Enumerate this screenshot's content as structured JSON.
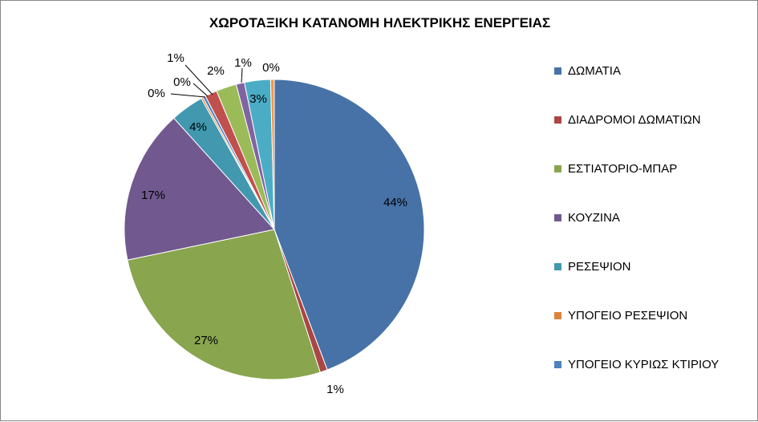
{
  "chart_data": {
    "type": "pie",
    "title": "ΧΩΡΟΤΑΞΙΚΗ ΚΑΤΑΝΟΜΗ ΗΛΕΚΤΡΙΚΗΣ ΕΝΕΡΓΕΙΑΣ",
    "legend_position": "right",
    "slices": [
      {
        "label": "ΔΩΜΑΤΙΑ",
        "value": 44.3,
        "display": "44%",
        "color": "#4672A8",
        "in_legend": true
      },
      {
        "label": "ΔΙΑΔΡΟΜΟΙ ΔΩΜΑΤΙΩΝ",
        "value": 0.8,
        "display": "1%",
        "color": "#AA4643",
        "in_legend": true
      },
      {
        "label": "ΕΣΤΙΑΤΟΡΙΟ-ΜΠΑΡ",
        "value": 26.7,
        "display": "27%",
        "color": "#89A54E",
        "in_legend": true
      },
      {
        "label": "ΚΟΥΖΙΝΑ",
        "value": 16.6,
        "display": "17%",
        "color": "#71588F",
        "in_legend": true
      },
      {
        "label": "ΡΕΣΕΨΙΟΝ",
        "value": 3.6,
        "display": "4%",
        "color": "#4198AF",
        "in_legend": true
      },
      {
        "label": "ΥΠΟΓΕΙΟ ΡΕΣΕΨΙΟΝ",
        "value": 0.2,
        "display": "0%",
        "color": "#DB843D",
        "in_legend": true
      },
      {
        "label": "ΥΠΟΓΕΙΟ ΚΥΡΙΩΣ ΚΤΙΡΙΟΥ",
        "value": 0.3,
        "display": "0%",
        "color": "#4F81BD",
        "in_legend": true
      },
      {
        "label": "",
        "value": 1.3,
        "display": "1%",
        "color": "#C0504D",
        "in_legend": false
      },
      {
        "label": "",
        "value": 2.2,
        "display": "2%",
        "color": "#9BBB59",
        "in_legend": false
      },
      {
        "label": "",
        "value": 0.9,
        "display": "1%",
        "color": "#8064A2",
        "in_legend": false
      },
      {
        "label": "",
        "value": 2.8,
        "display": "3%",
        "color": "#4BACC6",
        "in_legend": false
      },
      {
        "label": "",
        "value": 0.4,
        "display": "0%",
        "color": "#F79646",
        "in_legend": false
      }
    ]
  }
}
